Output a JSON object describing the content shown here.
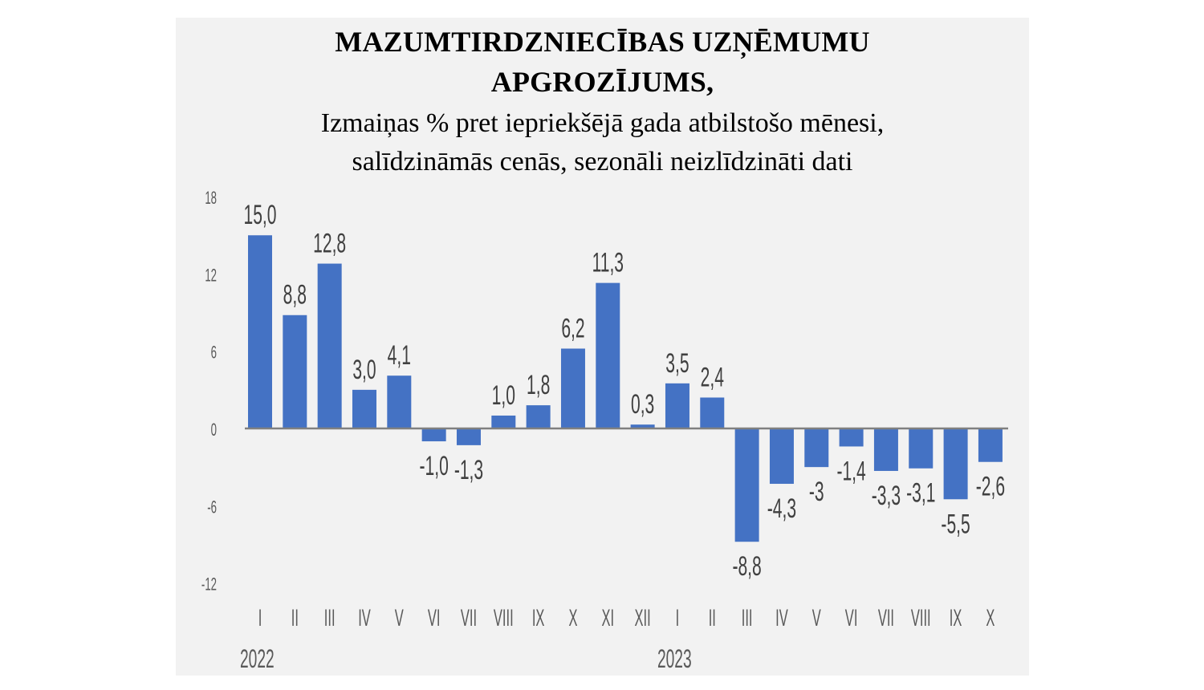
{
  "title": {
    "line1": "MAZUMTIRDZNIECĪBAS UZŅĒMUMU",
    "line2": "APGROZĪJUMS,",
    "subtitle1": "Izmaiņas % pret iepriekšējā gada atbilstošo mēnesi,",
    "subtitle2": "salīdzināmās cenās, sezonāli neizlīdzināti dati"
  },
  "colors": {
    "bar": "#4472c4",
    "axis": "#808080",
    "label": "#404040",
    "background": "#f2f2f2"
  },
  "chart_data": {
    "type": "bar",
    "title": "MAZUMTIRDZNIECĪBAS UZŅĒMUMU APGROZĪJUMS, Izmaiņas % pret iepriekšējā gada atbilstošo mēnesi, salīdzināmās cenās, sezonāli neizlīdzināti dati",
    "xlabel": "",
    "ylabel": "",
    "ylim": [
      -12,
      18
    ],
    "yticks": [
      18,
      12,
      6,
      0,
      -6,
      -12
    ],
    "ytick_labels": [
      "18",
      "12",
      "6",
      "0",
      "-6",
      "-12"
    ],
    "grid": false,
    "legend": null,
    "categories": [
      "I",
      "II",
      "III",
      "IV",
      "V",
      "VI",
      "VII",
      "VIII",
      "IX",
      "X",
      "XI",
      "XII",
      "I",
      "II",
      "III",
      "IV",
      "V",
      "VI",
      "VII",
      "VIII",
      "IX",
      "X"
    ],
    "year_labels": [
      {
        "label": "2022",
        "start_index": 0
      },
      {
        "label": "2023",
        "start_index": 12
      }
    ],
    "values": [
      15.0,
      8.8,
      12.8,
      3.0,
      4.1,
      -1.0,
      -1.3,
      1.0,
      1.8,
      6.2,
      11.3,
      0.3,
      3.5,
      2.4,
      -8.8,
      -4.3,
      -3.0,
      -1.4,
      -3.3,
      -3.1,
      -5.5,
      -2.6
    ],
    "data_labels": [
      "15,0",
      "8,8",
      "12,8",
      "3,0",
      "4,1",
      "-1,0",
      "-1,3",
      "1,0",
      "1,8",
      "6,2",
      "11,3",
      "0,3",
      "3,5",
      "2,4",
      "-8,8",
      "-4,3",
      "-3",
      "-1,4",
      "-3,3",
      "-3,1",
      "-5,5",
      "-2,6"
    ]
  }
}
